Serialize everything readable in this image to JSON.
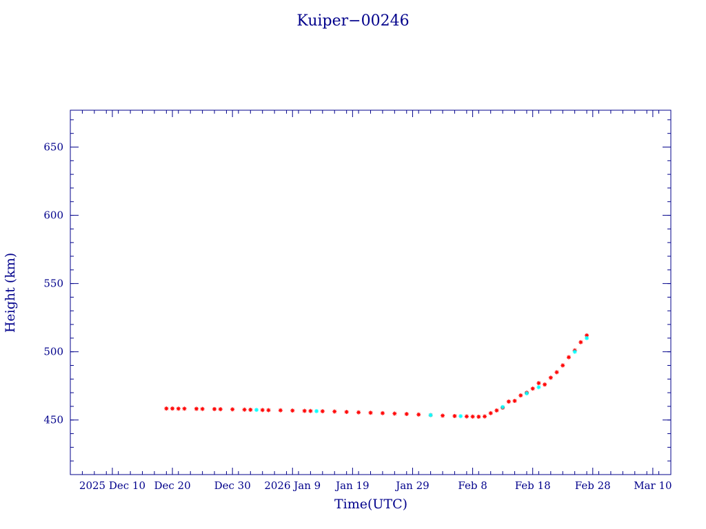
{
  "chart_data": {
    "type": "scatter",
    "title": "Kuiper−00246",
    "xlabel": "Time(UTC)",
    "ylabel": "Height (km)",
    "x_is_date": true,
    "xlim": [
      "2025-12-03",
      "2026-03-13"
    ],
    "ylim": [
      410,
      677
    ],
    "grid": false,
    "x_ticks": [
      {
        "date": "2025-12-10",
        "label": "2025 Dec 10"
      },
      {
        "date": "2025-12-20",
        "label": "Dec 20"
      },
      {
        "date": "2025-12-30",
        "label": "Dec 30"
      },
      {
        "date": "2026-01-09",
        "label": "2026 Jan  9"
      },
      {
        "date": "2026-01-19",
        "label": "Jan 19"
      },
      {
        "date": "2026-01-29",
        "label": "Jan 29"
      },
      {
        "date": "2026-02-08",
        "label": "Feb  8"
      },
      {
        "date": "2026-02-18",
        "label": "Feb 18"
      },
      {
        "date": "2026-02-28",
        "label": "Feb 28"
      },
      {
        "date": "2026-03-10",
        "label": "Mar 10"
      }
    ],
    "y_ticks": [
      450,
      500,
      550,
      600,
      650
    ],
    "series": [
      {
        "color": "#ff0000",
        "marker": "asterisk",
        "points": [
          [
            "2025-12-19",
            458.4
          ],
          [
            "2025-12-20",
            458.4
          ],
          [
            "2025-12-21",
            458.3
          ],
          [
            "2025-12-22",
            458.3
          ],
          [
            "2025-12-24",
            458.2
          ],
          [
            "2025-12-25",
            458.1
          ],
          [
            "2025-12-27",
            458.0
          ],
          [
            "2025-12-28",
            457.9
          ],
          [
            "2025-12-30",
            457.8
          ],
          [
            "2026-01-01",
            457.6
          ],
          [
            "2026-01-02",
            457.5
          ],
          [
            "2026-01-04",
            457.3
          ],
          [
            "2026-01-05",
            457.2
          ],
          [
            "2026-01-07",
            457.1
          ],
          [
            "2026-01-09",
            456.9
          ],
          [
            "2026-01-11",
            456.7
          ],
          [
            "2026-01-12",
            456.6
          ],
          [
            "2026-01-14",
            456.4
          ],
          [
            "2026-01-16",
            456.2
          ],
          [
            "2026-01-18",
            455.9
          ],
          [
            "2026-01-20",
            455.6
          ],
          [
            "2026-01-22",
            455.3
          ],
          [
            "2026-01-24",
            455.0
          ],
          [
            "2026-01-26",
            454.7
          ],
          [
            "2026-01-28",
            454.4
          ],
          [
            "2026-01-30",
            454.0
          ],
          [
            "2026-02-01",
            453.6
          ],
          [
            "2026-02-03",
            453.2
          ],
          [
            "2026-02-05",
            452.9
          ],
          [
            "2026-02-07",
            452.6
          ],
          [
            "2026-02-08",
            452.5
          ],
          [
            "2026-02-09",
            452.4
          ],
          [
            "2026-02-10",
            452.6
          ],
          [
            "2026-02-11",
            455.0
          ],
          [
            "2026-02-12",
            457.0
          ],
          [
            "2026-02-13",
            459.0
          ],
          [
            "2026-02-14",
            463.5
          ],
          [
            "2026-02-15",
            464.0
          ],
          [
            "2026-02-16",
            468.0
          ],
          [
            "2026-02-17",
            470.0
          ],
          [
            "2026-02-18",
            473.0
          ],
          [
            "2026-02-19",
            477.0
          ],
          [
            "2026-02-20",
            476.0
          ],
          [
            "2026-02-21",
            481.0
          ],
          [
            "2026-02-22",
            485.0
          ],
          [
            "2026-02-23",
            490.0
          ],
          [
            "2026-02-24",
            496.0
          ],
          [
            "2026-02-25",
            501.0
          ],
          [
            "2026-02-26",
            507.0
          ],
          [
            "2026-02-27",
            512.0
          ]
        ]
      },
      {
        "color": "#00ffff",
        "marker": "asterisk",
        "points": [
          [
            "2026-01-03",
            457.4
          ],
          [
            "2026-01-13",
            456.5
          ],
          [
            "2026-02-01",
            453.6
          ],
          [
            "2026-02-06",
            452.8
          ],
          [
            "2026-02-13",
            459.5
          ],
          [
            "2026-02-17",
            469.5
          ],
          [
            "2026-02-19",
            474.0
          ],
          [
            "2026-02-25",
            500.0
          ],
          [
            "2026-02-27",
            510.0
          ]
        ]
      }
    ]
  }
}
